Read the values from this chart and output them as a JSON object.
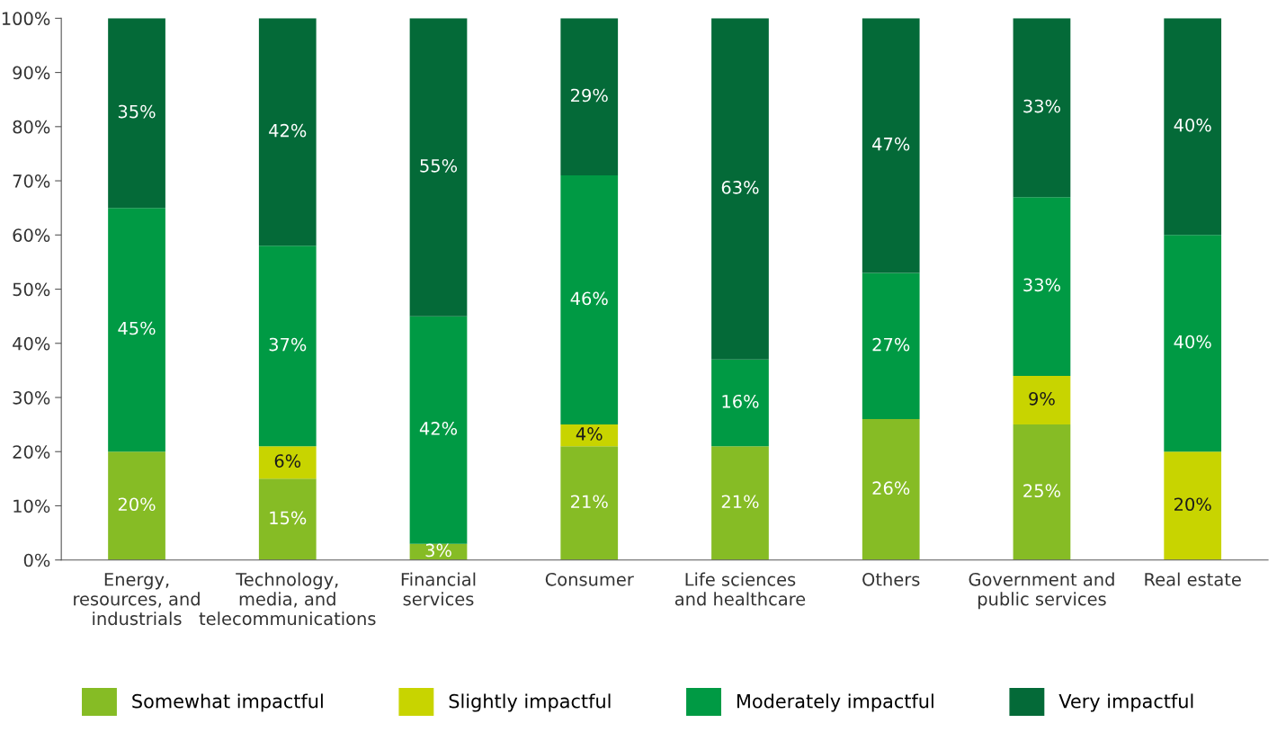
{
  "chart_data": {
    "type": "bar",
    "stacked": true,
    "grid": false,
    "legend": "bottom",
    "categories": [
      "Energy, resources, and industrials",
      "Technology, media, and telecommunications",
      "Financial services",
      "Consumer",
      "Life sciences and healthcare",
      "Others",
      "Government and public services",
      "Real estate"
    ],
    "series": [
      {
        "name": "Somewhat impactful",
        "color": "#86bc25",
        "values": [
          20,
          15,
          3,
          21,
          21,
          26,
          25,
          null
        ],
        "value_labels": [
          "20%",
          "15%",
          "3%",
          "21%",
          "21%",
          "26%",
          "25%",
          null
        ]
      },
      {
        "name": "Slightly impactful",
        "color": "#c8d400",
        "values": [
          null,
          6,
          null,
          4,
          null,
          null,
          9,
          20
        ],
        "value_labels": [
          null,
          "6%",
          null,
          "4%",
          null,
          null,
          "9%",
          "20%"
        ]
      },
      {
        "name": "Moderately impactful",
        "color": "#009a44",
        "values": [
          45,
          37,
          42,
          46,
          16,
          27,
          33,
          40
        ],
        "value_labels": [
          "45%",
          "37%",
          "42%",
          "46%",
          "16%",
          "27%",
          "33%",
          "40%"
        ]
      },
      {
        "name": "Very impactful",
        "color": "#046a38",
        "values": [
          35,
          42,
          55,
          29,
          63,
          47,
          33,
          40
        ],
        "value_labels": [
          "35%",
          "42%",
          "55%",
          "29%",
          "63%",
          "47%",
          "33%",
          "40%"
        ]
      }
    ],
    "ylim": [
      0,
      100
    ],
    "yticks": [
      {
        "value": 0,
        "label": "0%"
      },
      {
        "value": 10,
        "label": "10%"
      },
      {
        "value": 20,
        "label": "20%"
      },
      {
        "value": 30,
        "label": "30%"
      },
      {
        "value": 40,
        "label": "40%"
      },
      {
        "value": 50,
        "label": "50%"
      },
      {
        "value": 60,
        "label": "60%"
      },
      {
        "value": 70,
        "label": "70%"
      },
      {
        "value": 80,
        "label": "80%"
      },
      {
        "value": 90,
        "label": "90%"
      },
      {
        "value": 100,
        "label": "100%"
      }
    ]
  }
}
